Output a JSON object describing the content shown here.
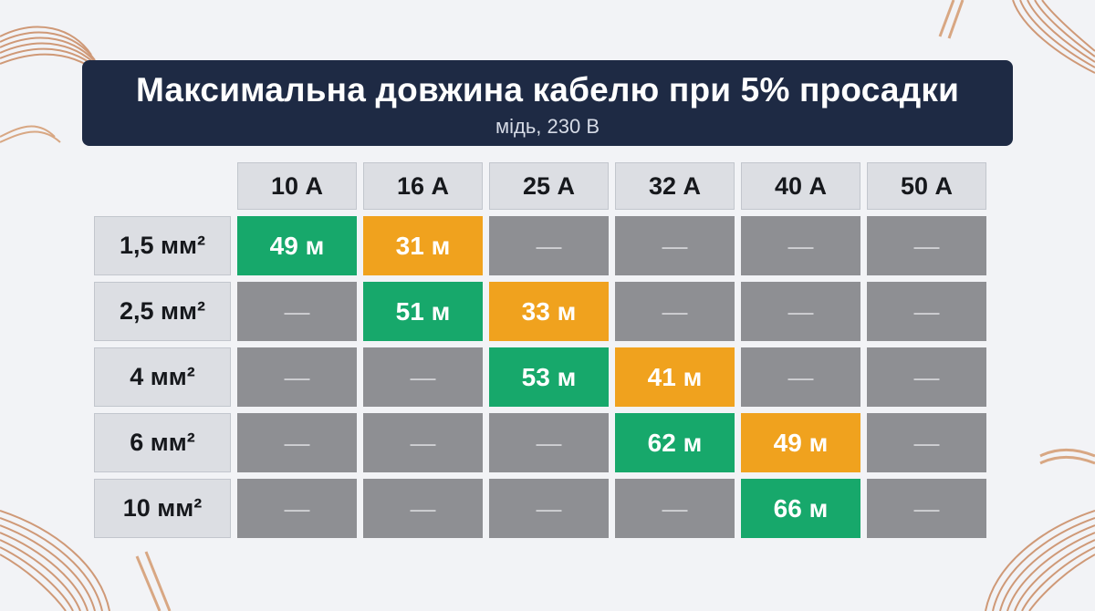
{
  "header": {
    "title": "Максимальна довжина кабелю при 5% просадки",
    "subtitle": "мідь, 230 В"
  },
  "chart_data": {
    "type": "table",
    "title": "Максимальна довжина кабелю при 5% просадки",
    "subtitle": "мідь, 230 В",
    "columns": [
      "10 А",
      "16 А",
      "25 А",
      "32 А",
      "40 А",
      "50 А"
    ],
    "rows": [
      {
        "label": "1,5 мм²",
        "cells": [
          {
            "text": "49 м",
            "status": "ok"
          },
          {
            "text": "31 м",
            "status": "warn"
          },
          {
            "text": "—",
            "status": "none"
          },
          {
            "text": "—",
            "status": "none"
          },
          {
            "text": "—",
            "status": "none"
          },
          {
            "text": "—",
            "status": "none"
          }
        ]
      },
      {
        "label": "2,5 мм²",
        "cells": [
          {
            "text": "—",
            "status": "none"
          },
          {
            "text": "51 м",
            "status": "ok"
          },
          {
            "text": "33 м",
            "status": "warn"
          },
          {
            "text": "—",
            "status": "none"
          },
          {
            "text": "—",
            "status": "none"
          },
          {
            "text": "—",
            "status": "none"
          }
        ]
      },
      {
        "label": "4 мм²",
        "cells": [
          {
            "text": "—",
            "status": "none"
          },
          {
            "text": "—",
            "status": "none"
          },
          {
            "text": "53 м",
            "status": "ok"
          },
          {
            "text": "41 м",
            "status": "warn"
          },
          {
            "text": "—",
            "status": "none"
          },
          {
            "text": "—",
            "status": "none"
          }
        ]
      },
      {
        "label": "6 мм²",
        "cells": [
          {
            "text": "—",
            "status": "none"
          },
          {
            "text": "—",
            "status": "none"
          },
          {
            "text": "—",
            "status": "none"
          },
          {
            "text": "62 м",
            "status": "ok"
          },
          {
            "text": "49 м",
            "status": "warn"
          },
          {
            "text": "—",
            "status": "none"
          }
        ]
      },
      {
        "label": "10 мм²",
        "cells": [
          {
            "text": "—",
            "status": "none"
          },
          {
            "text": "—",
            "status": "none"
          },
          {
            "text": "—",
            "status": "none"
          },
          {
            "text": "—",
            "status": "none"
          },
          {
            "text": "66 м",
            "status": "ok"
          },
          {
            "text": "—",
            "status": "none"
          }
        ]
      }
    ],
    "colors": {
      "ok": "#17a86b",
      "warn": "#f0a21e",
      "none": "#8e8f93",
      "header": "#1e2a44"
    }
  }
}
